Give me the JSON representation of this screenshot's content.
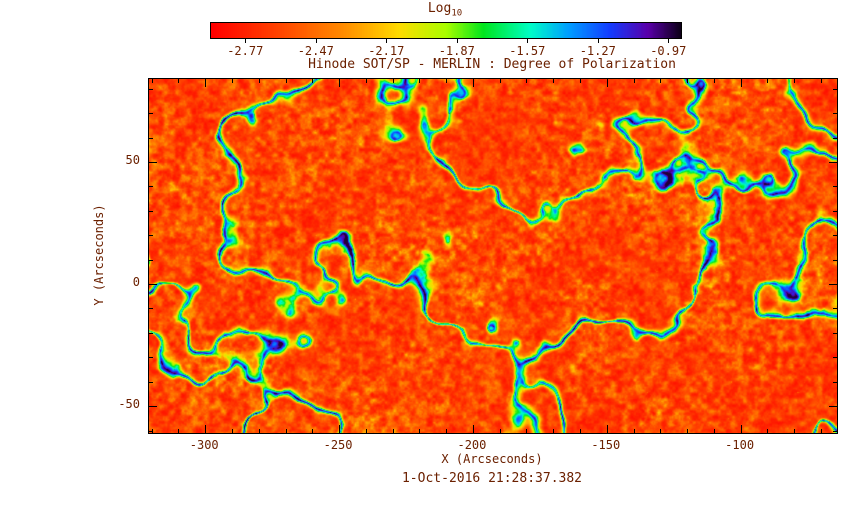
{
  "figure": {
    "background": "#ffffff",
    "text_color": "#6b2000",
    "timestamp": "1-Oct-2016 21:28:37.382"
  },
  "chart_data": {
    "type": "heatmap",
    "title": "Hinode SOT/SP - MERLIN : Degree of Polarization",
    "xlabel": "X (Arcseconds)",
    "ylabel": "Y (Arcseconds)",
    "x_range": [
      -321,
      -64
    ],
    "y_range": [
      -61,
      84
    ],
    "x_major_ticks": [
      -300,
      -250,
      -200,
      -150,
      -100
    ],
    "x_minor_step": 10,
    "y_major_ticks": [
      -50,
      0,
      50
    ],
    "y_minor_step": 10,
    "grid": false,
    "legend_position": "none",
    "colorbar": {
      "label_main": "Log",
      "label_sub": "10",
      "ticks": [
        -2.77,
        -2.47,
        -2.17,
        -1.87,
        -1.57,
        -1.27,
        -0.97
      ],
      "range": [
        -2.92,
        -0.92
      ],
      "orientation": "horizontal",
      "stops": [
        {
          "t": 0.0,
          "color": "#ff0000"
        },
        {
          "t": 0.15,
          "color": "#ff4800"
        },
        {
          "t": 0.28,
          "color": "#ff8c00"
        },
        {
          "t": 0.4,
          "color": "#ffdc00"
        },
        {
          "t": 0.5,
          "color": "#aaff00"
        },
        {
          "t": 0.58,
          "color": "#00e61e"
        },
        {
          "t": 0.68,
          "color": "#00ffc8"
        },
        {
          "t": 0.76,
          "color": "#00a0ff"
        },
        {
          "t": 0.85,
          "color": "#143cff"
        },
        {
          "t": 0.93,
          "color": "#5a00aa"
        },
        {
          "t": 1.0,
          "color": "#0f0019"
        }
      ]
    },
    "value_description": "Log10 degree of polarization map of quiet Sun: granulation background near -2.8 to -2.3 (red/orange speckle), magnetic network lanes -2.1 to -1.2 (yellow-green edges, cyan/blue cores), strongest flux concentrations approaching -1.0 (dark purple/black dots)",
    "render": {
      "seed": 7,
      "cell_freq": [
        6.2,
        3.2
      ],
      "grain_freq": [
        120,
        62
      ],
      "mottle_freq": [
        12,
        6.2
      ],
      "mod_freq": [
        30,
        15.4
      ],
      "dot_freq": [
        210,
        108
      ],
      "lane_width": 0.035,
      "base_offset": 0.03,
      "base_gain": 0.34,
      "lane_gain": 0.52,
      "max_t": 0.985
    }
  }
}
